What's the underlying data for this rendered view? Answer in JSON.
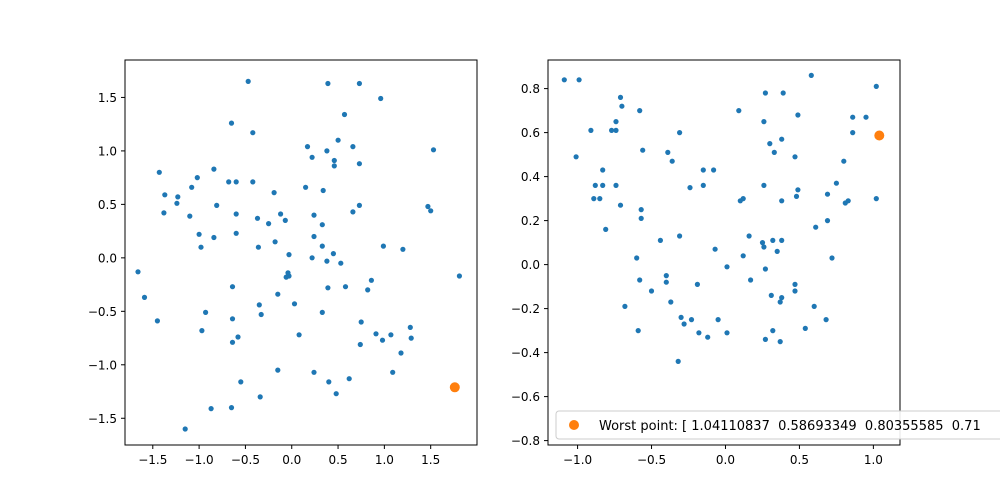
{
  "colors": {
    "series": "#1f77b4",
    "highlight": "#ff7f0e",
    "axes": "#000000",
    "legend_border": "#cccccc"
  },
  "chart_data": [
    {
      "type": "scatter",
      "xlim": [
        -1.8,
        2.0
      ],
      "ylim": [
        -1.75,
        1.85
      ],
      "xticks": [
        -1.5,
        -1.0,
        -0.5,
        0.0,
        0.5,
        1.0,
        1.5
      ],
      "xtick_labels": [
        "−1.5",
        "−1.0",
        "−0.5",
        "0.0",
        "0.5",
        "1.0",
        "1.5"
      ],
      "yticks": [
        -1.5,
        -1.0,
        -0.5,
        0.0,
        0.5,
        1.0,
        1.5
      ],
      "ytick_labels": [
        "−1.5",
        "−1.0",
        "−0.5",
        "0.0",
        "0.5",
        "1.0",
        "1.5"
      ],
      "grid": false,
      "series": [
        {
          "points": [
            [
              -0.47,
              1.65
            ],
            [
              0.39,
              1.63
            ],
            [
              0.73,
              1.63
            ],
            [
              0.96,
              1.49
            ],
            [
              0.57,
              1.34
            ],
            [
              -0.65,
              1.26
            ],
            [
              -0.42,
              1.17
            ],
            [
              0.5,
              1.1
            ],
            [
              0.17,
              1.04
            ],
            [
              0.38,
              1.0
            ],
            [
              0.66,
              1.04
            ],
            [
              1.53,
              1.01
            ],
            [
              0.22,
              0.94
            ],
            [
              0.46,
              0.91
            ],
            [
              0.46,
              0.86
            ],
            [
              0.73,
              0.88
            ],
            [
              -1.43,
              0.8
            ],
            [
              -0.84,
              0.83
            ],
            [
              -1.02,
              0.75
            ],
            [
              -1.08,
              0.66
            ],
            [
              -1.37,
              0.59
            ],
            [
              -1.23,
              0.57
            ],
            [
              -0.68,
              0.71
            ],
            [
              -0.6,
              0.71
            ],
            [
              -0.42,
              0.71
            ],
            [
              0.15,
              0.66
            ],
            [
              0.34,
              0.63
            ],
            [
              -0.19,
              0.61
            ],
            [
              -1.24,
              0.51
            ],
            [
              -0.81,
              0.49
            ],
            [
              -1.38,
              0.42
            ],
            [
              -1.1,
              0.39
            ],
            [
              -0.6,
              0.41
            ],
            [
              -0.37,
              0.37
            ],
            [
              -0.25,
              0.32
            ],
            [
              -0.12,
              0.41
            ],
            [
              -0.07,
              0.35
            ],
            [
              0.24,
              0.4
            ],
            [
              0.33,
              0.31
            ],
            [
              0.66,
              0.43
            ],
            [
              0.73,
              0.49
            ],
            [
              1.47,
              0.48
            ],
            [
              1.5,
              0.44
            ],
            [
              -1.0,
              0.22
            ],
            [
              -0.84,
              0.19
            ],
            [
              -0.6,
              0.23
            ],
            [
              -0.18,
              0.15
            ],
            [
              -0.36,
              0.1
            ],
            [
              -0.98,
              0.1
            ],
            [
              0.24,
              0.2
            ],
            [
              0.33,
              0.11
            ],
            [
              0.99,
              0.11
            ],
            [
              1.2,
              0.08
            ],
            [
              -0.03,
              0.03
            ],
            [
              0.22,
              0.0
            ],
            [
              0.38,
              -0.03
            ],
            [
              0.45,
              0.04
            ],
            [
              0.53,
              -0.05
            ],
            [
              -1.66,
              -0.13
            ],
            [
              -0.03,
              -0.17
            ],
            [
              -0.06,
              -0.18
            ],
            [
              -0.04,
              -0.14
            ],
            [
              -0.64,
              -0.27
            ],
            [
              -0.15,
              -0.34
            ],
            [
              0.39,
              -0.28
            ],
            [
              0.58,
              -0.27
            ],
            [
              0.82,
              -0.3
            ],
            [
              0.86,
              -0.21
            ],
            [
              -1.59,
              -0.37
            ],
            [
              -0.35,
              -0.44
            ],
            [
              0.03,
              -0.43
            ],
            [
              -0.93,
              -0.51
            ],
            [
              -0.33,
              -0.53
            ],
            [
              0.33,
              -0.51
            ],
            [
              1.81,
              -0.17
            ],
            [
              -1.45,
              -0.59
            ],
            [
              -0.64,
              -0.57
            ],
            [
              -0.97,
              -0.68
            ],
            [
              0.08,
              -0.72
            ],
            [
              0.75,
              -0.6
            ],
            [
              0.91,
              -0.71
            ],
            [
              1.07,
              -0.72
            ],
            [
              1.28,
              -0.65
            ],
            [
              -0.58,
              -0.74
            ],
            [
              -0.64,
              -0.79
            ],
            [
              0.74,
              -0.81
            ],
            [
              0.98,
              -0.77
            ],
            [
              1.29,
              -0.75
            ],
            [
              1.18,
              -0.89
            ],
            [
              -0.15,
              -1.05
            ],
            [
              0.24,
              -1.07
            ],
            [
              0.62,
              -1.13
            ],
            [
              1.09,
              -1.07
            ],
            [
              -0.55,
              -1.16
            ],
            [
              0.4,
              -1.16
            ],
            [
              0.48,
              -1.27
            ],
            [
              -0.34,
              -1.3
            ],
            [
              -0.87,
              -1.41
            ],
            [
              -0.65,
              -1.4
            ],
            [
              -1.15,
              -1.6
            ]
          ]
        }
      ],
      "highlight": {
        "point": [
          1.76,
          -1.21
        ]
      }
    },
    {
      "type": "scatter",
      "xlim": [
        -1.2,
        1.18
      ],
      "ylim": [
        -0.82,
        0.93
      ],
      "xticks": [
        -1.0,
        -0.5,
        0.0,
        0.5,
        1.0
      ],
      "xtick_labels": [
        "−1.0",
        "−0.5",
        "0.0",
        "0.5",
        "1.0"
      ],
      "yticks": [
        -0.8,
        -0.6,
        -0.4,
        -0.2,
        0.0,
        0.2,
        0.4,
        0.6,
        0.8
      ],
      "ytick_labels": [
        "−0.8",
        "−0.6",
        "−0.4",
        "−0.2",
        "0.0",
        "0.2",
        "0.4",
        "0.6",
        "0.8"
      ],
      "grid": false,
      "series": [
        {
          "points": [
            [
              -1.09,
              0.84
            ],
            [
              -0.99,
              0.84
            ],
            [
              0.58,
              0.86
            ],
            [
              1.02,
              0.81
            ],
            [
              -0.71,
              0.76
            ],
            [
              -0.7,
              0.72
            ],
            [
              0.27,
              0.78
            ],
            [
              0.39,
              0.78
            ],
            [
              -0.58,
              0.7
            ],
            [
              0.09,
              0.7
            ],
            [
              0.49,
              0.68
            ],
            [
              0.86,
              0.67
            ],
            [
              0.95,
              0.67
            ],
            [
              -0.77,
              0.61
            ],
            [
              -0.91,
              0.61
            ],
            [
              -0.74,
              0.61
            ],
            [
              -0.74,
              0.65
            ],
            [
              -0.31,
              0.6
            ],
            [
              0.26,
              0.65
            ],
            [
              0.86,
              0.6
            ],
            [
              0.3,
              0.55
            ],
            [
              0.38,
              0.57
            ],
            [
              0.33,
              0.51
            ],
            [
              -0.39,
              0.51
            ],
            [
              -0.56,
              0.52
            ],
            [
              -1.01,
              0.49
            ],
            [
              0.47,
              0.49
            ],
            [
              -0.36,
              0.47
            ],
            [
              0.8,
              0.47
            ],
            [
              -0.83,
              0.43
            ],
            [
              -0.15,
              0.43
            ],
            [
              -0.08,
              0.43
            ],
            [
              -0.15,
              0.36
            ],
            [
              -0.88,
              0.36
            ],
            [
              -0.83,
              0.36
            ],
            [
              -0.74,
              0.36
            ],
            [
              -0.24,
              0.35
            ],
            [
              0.26,
              0.36
            ],
            [
              0.75,
              0.37
            ],
            [
              0.49,
              0.34
            ],
            [
              0.69,
              0.32
            ],
            [
              -0.89,
              0.3
            ],
            [
              -0.85,
              0.3
            ],
            [
              0.1,
              0.29
            ],
            [
              0.12,
              0.3
            ],
            [
              0.38,
              0.29
            ],
            [
              0.48,
              0.31
            ],
            [
              0.81,
              0.28
            ],
            [
              0.83,
              0.29
            ],
            [
              1.02,
              0.3
            ],
            [
              -0.71,
              0.27
            ],
            [
              -0.57,
              0.25
            ],
            [
              -0.57,
              0.21
            ],
            [
              0.61,
              0.17
            ],
            [
              0.69,
              0.2
            ],
            [
              -0.81,
              0.16
            ],
            [
              -0.31,
              0.13
            ],
            [
              -0.44,
              0.11
            ],
            [
              0.16,
              0.13
            ],
            [
              0.25,
              0.1
            ],
            [
              0.32,
              0.11
            ],
            [
              0.38,
              0.11
            ],
            [
              0.26,
              0.08
            ],
            [
              -0.07,
              0.07
            ],
            [
              0.12,
              0.04
            ],
            [
              0.35,
              0.06
            ],
            [
              0.72,
              0.03
            ],
            [
              -0.6,
              0.03
            ],
            [
              0.01,
              -0.01
            ],
            [
              0.27,
              -0.02
            ],
            [
              -0.4,
              -0.05
            ],
            [
              -0.58,
              -0.07
            ],
            [
              -0.4,
              -0.08
            ],
            [
              -0.19,
              -0.09
            ],
            [
              0.47,
              -0.09
            ],
            [
              -0.5,
              -0.12
            ],
            [
              0.47,
              -0.12
            ],
            [
              0.17,
              -0.07
            ],
            [
              0.31,
              -0.14
            ],
            [
              0.38,
              -0.15
            ],
            [
              -0.37,
              -0.17
            ],
            [
              0.37,
              -0.17
            ],
            [
              -0.68,
              -0.19
            ],
            [
              0.6,
              -0.19
            ],
            [
              -0.3,
              -0.24
            ],
            [
              -0.23,
              -0.25
            ],
            [
              -0.05,
              -0.25
            ],
            [
              -0.28,
              -0.27
            ],
            [
              -0.59,
              -0.3
            ],
            [
              -0.18,
              -0.31
            ],
            [
              -0.12,
              -0.33
            ],
            [
              0.01,
              -0.31
            ],
            [
              0.32,
              -0.3
            ],
            [
              0.54,
              -0.29
            ],
            [
              0.27,
              -0.34
            ],
            [
              0.37,
              -0.35
            ],
            [
              0.68,
              -0.25
            ],
            [
              -0.32,
              -0.44
            ]
          ]
        }
      ],
      "highlight": {
        "point": [
          1.04,
          0.587
        ],
        "label": "Worst point: [ 1.04110837  0.58693349  0.80355585  0.71"
      }
    }
  ]
}
